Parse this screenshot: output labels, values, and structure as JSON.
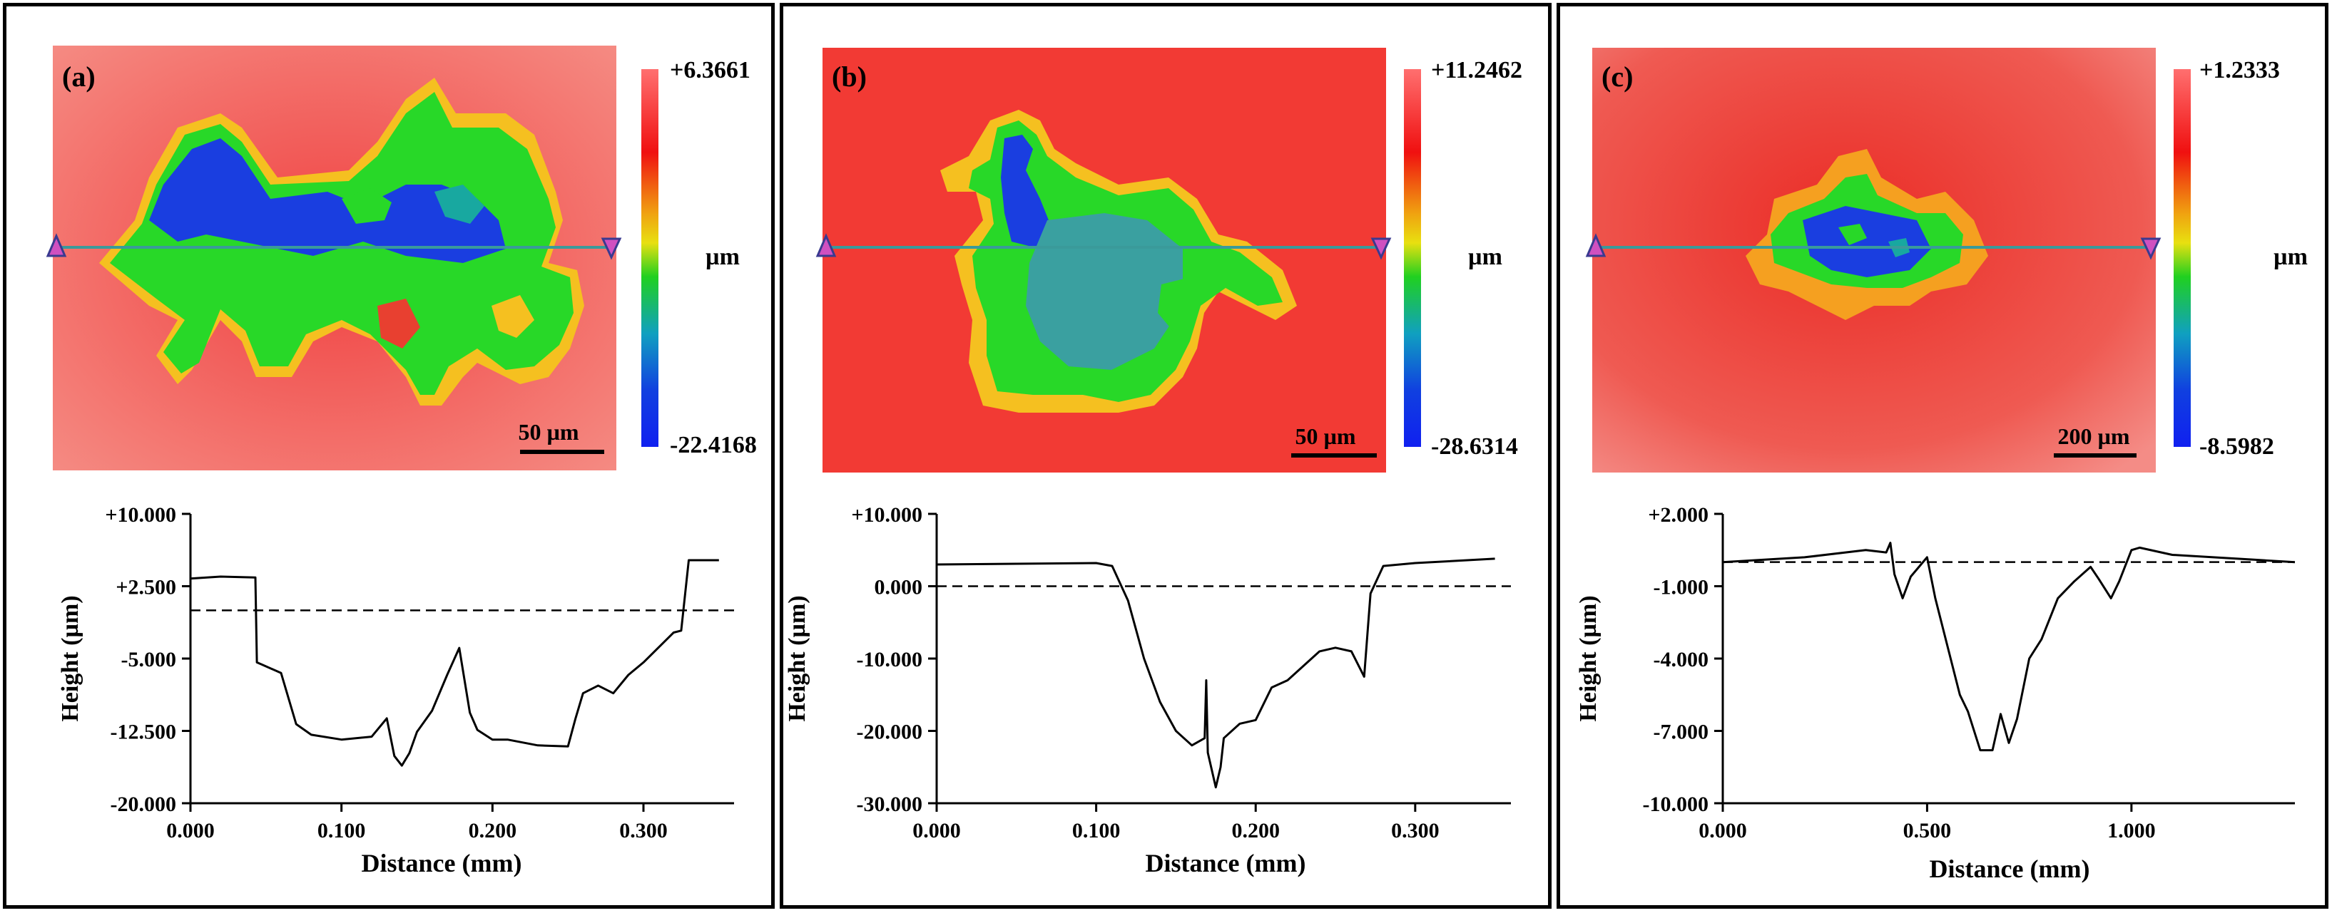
{
  "panels": [
    {
      "label": "(a)",
      "scale_bar": "50 µm",
      "colorbar": {
        "max_label": "+6.3661",
        "min_label": "-22.4168",
        "unit": "µm"
      },
      "profile_ylabel": "Height (µm)",
      "profile_xlabel": "Distance (mm)"
    },
    {
      "label": "(b)",
      "scale_bar": "50 µm",
      "colorbar": {
        "max_label": "+11.2462",
        "min_label": "-28.6314",
        "unit": "µm"
      },
      "profile_ylabel": "Height (µm)",
      "profile_xlabel": "Distance (mm)"
    },
    {
      "label": "(c)",
      "scale_bar": "200 µm",
      "colorbar": {
        "max_label": "+1.2333",
        "min_label": "-8.5982",
        "unit": "µm"
      },
      "profile_ylabel": "Height (µm)",
      "profile_xlabel": "Distance (mm)"
    }
  ],
  "colors": {
    "surface_red": "#f2433c",
    "green": "#22dd22",
    "blue": "#1a3de0",
    "yellow": "#f5d520",
    "cyan": "#18a8a0"
  },
  "chart_data": [
    {
      "type": "line",
      "title": "",
      "xlabel": "Distance (mm)",
      "ylabel": "Height (µm)",
      "xlim": [
        0,
        0.36
      ],
      "ylim": [
        -20,
        10
      ],
      "xticks": [
        0,
        0.1,
        0.2,
        0.3
      ],
      "xtick_labels": [
        "0.000",
        "0.100",
        "0.200",
        "0.300"
      ],
      "yticks": [
        10,
        2.5,
        -5,
        -12.5,
        -20
      ],
      "ytick_labels": [
        "+10.000",
        "+2.500",
        "-5.000",
        "-12.500",
        "-20.000"
      ],
      "reference_level": 0,
      "x": [
        0,
        0.02,
        0.043,
        0.044,
        0.047,
        0.06,
        0.07,
        0.08,
        0.1,
        0.12,
        0.13,
        0.135,
        0.14,
        0.145,
        0.15,
        0.16,
        0.17,
        0.178,
        0.185,
        0.19,
        0.2,
        0.21,
        0.23,
        0.25,
        0.255,
        0.26,
        0.27,
        0.28,
        0.29,
        0.3,
        0.32,
        0.325,
        0.33,
        0.35
      ],
      "values": [
        3.3,
        3.5,
        3.4,
        -5.4,
        -5.6,
        -6.5,
        -11.8,
        -12.9,
        -13.4,
        -13.1,
        -11.2,
        -15.1,
        -16.1,
        -14.8,
        -12.6,
        -10.4,
        -6.7,
        -3.9,
        -10.6,
        -12.4,
        -13.4,
        -13.4,
        -14,
        -14.1,
        -11.2,
        -8.6,
        -7.8,
        -8.6,
        -6.7,
        -5.4,
        -2.3,
        -2.1,
        5.2,
        5.2
      ]
    },
    {
      "type": "line",
      "title": "",
      "xlabel": "Distance (mm)",
      "ylabel": "Height (µm)",
      "xlim": [
        0,
        0.36
      ],
      "ylim": [
        -30,
        10
      ],
      "xticks": [
        0,
        0.1,
        0.2,
        0.3
      ],
      "xtick_labels": [
        "0.000",
        "0.100",
        "0.200",
        "0.300"
      ],
      "yticks": [
        10,
        0,
        -10,
        -20,
        -30
      ],
      "ytick_labels": [
        "+10.000",
        "0.000",
        "-10.000",
        "-20.000",
        "-30.000"
      ],
      "reference_level": 0,
      "x": [
        0,
        0.05,
        0.1,
        0.11,
        0.12,
        0.13,
        0.14,
        0.15,
        0.16,
        0.168,
        0.169,
        0.17,
        0.175,
        0.178,
        0.18,
        0.19,
        0.2,
        0.21,
        0.22,
        0.24,
        0.25,
        0.26,
        0.268,
        0.272,
        0.28,
        0.3,
        0.35
      ],
      "values": [
        3,
        3.1,
        3.2,
        2.8,
        -2,
        -10,
        -16,
        -20,
        -22,
        -21,
        -13,
        -23,
        -27.8,
        -25,
        -21,
        -19,
        -18.5,
        -14,
        -13,
        -9,
        -8.5,
        -9,
        -12.5,
        -1,
        2.8,
        3.2,
        3.8
      ]
    },
    {
      "type": "line",
      "title": "",
      "xlabel": "Distance (mm)",
      "ylabel": "Height (µm)",
      "xlim": [
        0,
        1.4
      ],
      "ylim": [
        -10,
        2
      ],
      "xticks": [
        0,
        0.5,
        1.0
      ],
      "xtick_labels": [
        "0.000",
        "0.500",
        "1.000"
      ],
      "yticks": [
        2,
        -1,
        -4,
        -7,
        -10
      ],
      "ytick_labels": [
        "+2.000",
        "-1.000",
        "-4.000",
        "-7.000",
        "-10.000"
      ],
      "reference_level": 0,
      "x": [
        0,
        0.2,
        0.35,
        0.4,
        0.41,
        0.42,
        0.44,
        0.46,
        0.5,
        0.52,
        0.55,
        0.58,
        0.6,
        0.63,
        0.66,
        0.68,
        0.7,
        0.72,
        0.75,
        0.78,
        0.82,
        0.86,
        0.9,
        0.92,
        0.95,
        0.97,
        1.0,
        1.02,
        1.1,
        1.3,
        1.4
      ],
      "values": [
        0,
        0.2,
        0.5,
        0.4,
        0.8,
        -0.5,
        -1.5,
        -0.6,
        0.2,
        -1.5,
        -3.5,
        -5.5,
        -6.2,
        -7.8,
        -7.8,
        -6.3,
        -7.5,
        -6.5,
        -4,
        -3.2,
        -1.5,
        -0.8,
        -0.2,
        -0.7,
        -1.5,
        -0.8,
        0.5,
        0.6,
        0.3,
        0.1,
        0
      ]
    }
  ]
}
